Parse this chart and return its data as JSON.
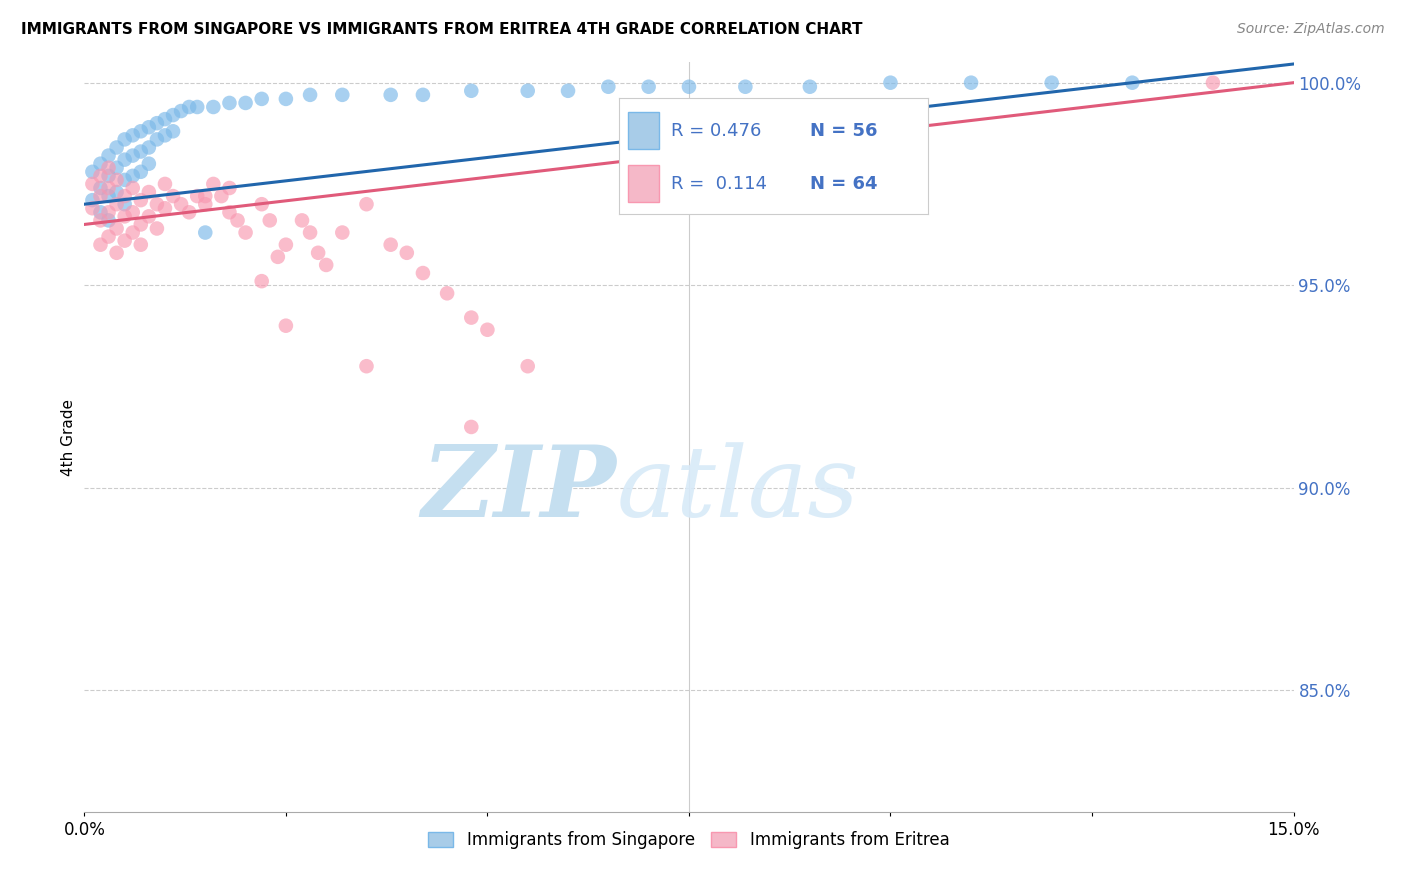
{
  "title": "IMMIGRANTS FROM SINGAPORE VS IMMIGRANTS FROM ERITREA 4TH GRADE CORRELATION CHART",
  "source": "Source: ZipAtlas.com",
  "ylabel": "4th Grade",
  "xlim": [
    0.0,
    0.15
  ],
  "ylim": [
    0.82,
    1.005
  ],
  "yticks": [
    0.85,
    0.9,
    0.95,
    1.0
  ],
  "ytick_labels": [
    "85.0%",
    "90.0%",
    "95.0%",
    "100.0%"
  ],
  "xticks": [
    0.0,
    0.025,
    0.05,
    0.075,
    0.1,
    0.125,
    0.15
  ],
  "xtick_labels": [
    "0.0%",
    "",
    "",
    "",
    "",
    "",
    "15.0%"
  ],
  "singapore_R": 0.476,
  "singapore_N": 56,
  "eritrea_R": 0.114,
  "eritrea_N": 64,
  "singapore_color": "#7ab8e8",
  "eritrea_color": "#f898b0",
  "singapore_line_color": "#2166ac",
  "eritrea_line_color": "#e05a7a",
  "legend_color_singapore": "#a8cce8",
  "legend_color_eritrea": "#f5b8c8",
  "watermark_zip_color": "#c5dff0",
  "watermark_atlas_color": "#d8eaf8",
  "singapore_x": [
    0.001,
    0.001,
    0.002,
    0.002,
    0.002,
    0.003,
    0.003,
    0.003,
    0.003,
    0.004,
    0.004,
    0.004,
    0.005,
    0.005,
    0.005,
    0.005,
    0.006,
    0.006,
    0.006,
    0.007,
    0.007,
    0.007,
    0.008,
    0.008,
    0.008,
    0.009,
    0.009,
    0.01,
    0.01,
    0.011,
    0.011,
    0.012,
    0.013,
    0.014,
    0.015,
    0.016,
    0.018,
    0.02,
    0.022,
    0.025,
    0.028,
    0.032,
    0.038,
    0.042,
    0.048,
    0.055,
    0.06,
    0.065,
    0.07,
    0.075,
    0.082,
    0.09,
    0.1,
    0.11,
    0.12,
    0.13
  ],
  "singapore_y": [
    0.978,
    0.971,
    0.98,
    0.974,
    0.968,
    0.982,
    0.977,
    0.972,
    0.966,
    0.984,
    0.979,
    0.973,
    0.986,
    0.981,
    0.976,
    0.97,
    0.987,
    0.982,
    0.977,
    0.988,
    0.983,
    0.978,
    0.989,
    0.984,
    0.98,
    0.99,
    0.986,
    0.991,
    0.987,
    0.992,
    0.988,
    0.993,
    0.994,
    0.994,
    0.963,
    0.994,
    0.995,
    0.995,
    0.996,
    0.996,
    0.997,
    0.997,
    0.997,
    0.997,
    0.998,
    0.998,
    0.998,
    0.999,
    0.999,
    0.999,
    0.999,
    0.999,
    1.0,
    1.0,
    1.0,
    1.0
  ],
  "eritrea_x": [
    0.001,
    0.001,
    0.002,
    0.002,
    0.002,
    0.002,
    0.003,
    0.003,
    0.003,
    0.003,
    0.004,
    0.004,
    0.004,
    0.004,
    0.005,
    0.005,
    0.005,
    0.006,
    0.006,
    0.006,
    0.007,
    0.007,
    0.007,
    0.008,
    0.008,
    0.009,
    0.009,
    0.01,
    0.01,
    0.011,
    0.012,
    0.013,
    0.014,
    0.015,
    0.016,
    0.017,
    0.018,
    0.019,
    0.02,
    0.022,
    0.023,
    0.025,
    0.027,
    0.028,
    0.029,
    0.03,
    0.032,
    0.035,
    0.038,
    0.04,
    0.042,
    0.045,
    0.048,
    0.05,
    0.055,
    0.022,
    0.024,
    0.035,
    0.048,
    0.06,
    0.025,
    0.018,
    0.015,
    0.14
  ],
  "eritrea_y": [
    0.975,
    0.969,
    0.977,
    0.972,
    0.966,
    0.96,
    0.979,
    0.974,
    0.968,
    0.962,
    0.976,
    0.97,
    0.964,
    0.958,
    0.972,
    0.967,
    0.961,
    0.974,
    0.968,
    0.963,
    0.971,
    0.965,
    0.96,
    0.973,
    0.967,
    0.97,
    0.964,
    0.975,
    0.969,
    0.972,
    0.97,
    0.968,
    0.972,
    0.97,
    0.975,
    0.972,
    0.968,
    0.966,
    0.963,
    0.97,
    0.966,
    0.96,
    0.966,
    0.963,
    0.958,
    0.955,
    0.963,
    0.97,
    0.96,
    0.958,
    0.953,
    0.948,
    0.942,
    0.939,
    0.93,
    0.951,
    0.957,
    0.93,
    0.915,
    0.908,
    0.94,
    0.974,
    0.972,
    1.0
  ]
}
